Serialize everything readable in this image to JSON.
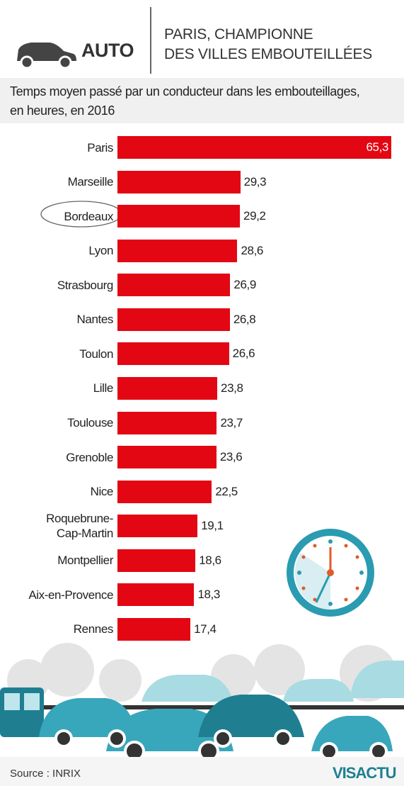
{
  "header": {
    "section": "AUTO",
    "title": "PARIS, CHAMPIONNE\nDES VILLES EMBOUTEILLÉES"
  },
  "chart_data": {
    "type": "bar",
    "orientation": "horizontal",
    "subtitle": "Temps moyen passé par un conducteur dans les embouteillages,\nen heures, en 2016",
    "categories": [
      "Paris",
      "Marseille",
      "Bordeaux",
      "Lyon",
      "Strasbourg",
      "Nantes",
      "Toulon",
      "Lille",
      "Toulouse",
      "Grenoble",
      "Nice",
      "Roquebrune-\nCap-Martin",
      "Montpellier",
      "Aix-en-Provence",
      "Rennes"
    ],
    "values": [
      65.3,
      29.3,
      29.2,
      28.6,
      26.9,
      26.8,
      26.6,
      23.8,
      23.7,
      23.6,
      22.5,
      19.1,
      18.6,
      18.3,
      17.4
    ],
    "value_labels": [
      "65,3",
      "29,3",
      "29,2",
      "28,6",
      "26,9",
      "26,8",
      "26,6",
      "23,8",
      "23,7",
      "23,6",
      "22,5",
      "19,1",
      "18,6",
      "18,3",
      "17,4"
    ],
    "color": "#e30613"
  },
  "footer": {
    "source": "Source : INRIX",
    "logo": "VISACTU"
  }
}
